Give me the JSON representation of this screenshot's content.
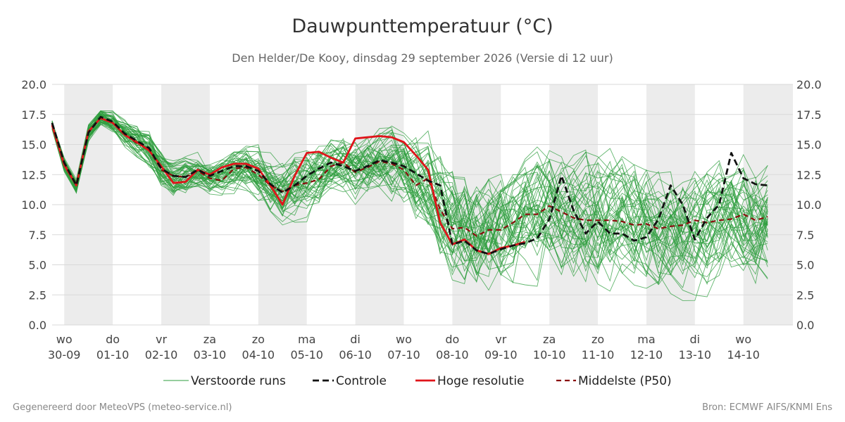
{
  "chart_data": {
    "type": "line",
    "title": "Dauwpunttemperatuur (°C)",
    "subtitle": "Den Helder/De Kooy, dinsdag 29 september 2026 (Versie di 12 uur)",
    "ylim": [
      0,
      20
    ],
    "y_ticks": [
      "0.0",
      "2.5",
      "5.0",
      "7.5",
      "10.0",
      "12.5",
      "15.0",
      "17.5",
      "20.0"
    ],
    "y_tick_values": [
      0,
      2.5,
      5,
      7.5,
      10,
      12.5,
      15,
      17.5,
      20
    ],
    "x_unit": "days after 29-09 00:00",
    "xlim": [
      0.75,
      16.02
    ],
    "x_ticks": [
      {
        "day": "wo",
        "date": "30-09",
        "x": 1
      },
      {
        "day": "do",
        "date": "01-10",
        "x": 2
      },
      {
        "day": "vr",
        "date": "02-10",
        "x": 3
      },
      {
        "day": "za",
        "date": "03-10",
        "x": 4
      },
      {
        "day": "zo",
        "date": "04-10",
        "x": 5
      },
      {
        "day": "ma",
        "date": "05-10",
        "x": 6
      },
      {
        "day": "di",
        "date": "06-10",
        "x": 7
      },
      {
        "day": "wo",
        "date": "07-10",
        "x": 8
      },
      {
        "day": "do",
        "date": "08-10",
        "x": 9
      },
      {
        "day": "vr",
        "date": "09-10",
        "x": 10
      },
      {
        "day": "za",
        "date": "10-10",
        "x": 11
      },
      {
        "day": "zo",
        "date": "11-10",
        "x": 12
      },
      {
        "day": "ma",
        "date": "12-10",
        "x": 13
      },
      {
        "day": "di",
        "date": "13-10",
        "x": 14
      },
      {
        "day": "wo",
        "date": "14-10",
        "x": 15
      }
    ],
    "shaded_days": [
      [
        1,
        2
      ],
      [
        3,
        4
      ],
      [
        5,
        6
      ],
      [
        7,
        8
      ],
      [
        9,
        10
      ],
      [
        11,
        12
      ],
      [
        13,
        14
      ],
      [
        15,
        16.02
      ]
    ],
    "grid": true,
    "colors": {
      "ensemble": "#2e9e3e",
      "control": "#111111",
      "hires": "#e0141a",
      "median": "#8b0e0e",
      "shade": "#ececec",
      "grid": "#d9d9d9"
    },
    "series": [
      {
        "name": "Controle",
        "style": "dashed",
        "points": [
          [
            0.75,
            16.8
          ],
          [
            1.0,
            13.5
          ],
          [
            1.25,
            11.6
          ],
          [
            1.5,
            16.0
          ],
          [
            1.75,
            17.3
          ],
          [
            2.0,
            16.9
          ],
          [
            2.25,
            15.9
          ],
          [
            2.5,
            15.3
          ],
          [
            2.75,
            14.7
          ],
          [
            3.0,
            13.0
          ],
          [
            3.25,
            12.4
          ],
          [
            3.5,
            12.3
          ],
          [
            3.75,
            12.9
          ],
          [
            4.0,
            12.4
          ],
          [
            4.25,
            12.8
          ],
          [
            4.5,
            13.2
          ],
          [
            4.75,
            13.2
          ],
          [
            5.0,
            12.8
          ],
          [
            5.25,
            11.7
          ],
          [
            5.5,
            11.0
          ],
          [
            5.75,
            11.6
          ],
          [
            6.0,
            12.4
          ],
          [
            6.25,
            13.0
          ],
          [
            6.5,
            13.5
          ],
          [
            6.75,
            13.2
          ],
          [
            7.0,
            12.8
          ],
          [
            7.25,
            13.2
          ],
          [
            7.5,
            13.7
          ],
          [
            7.75,
            13.5
          ],
          [
            8.0,
            13.2
          ],
          [
            8.25,
            12.6
          ],
          [
            8.5,
            12.0
          ],
          [
            8.75,
            11.6
          ],
          [
            9.0,
            6.7
          ],
          [
            9.25,
            7.0
          ],
          [
            9.5,
            6.2
          ],
          [
            9.75,
            5.9
          ],
          [
            10.0,
            6.3
          ],
          [
            10.25,
            6.6
          ],
          [
            10.5,
            6.8
          ],
          [
            10.75,
            7.2
          ],
          [
            11.0,
            8.8
          ],
          [
            11.25,
            12.4
          ],
          [
            11.5,
            9.5
          ],
          [
            11.75,
            7.6
          ],
          [
            12.0,
            8.6
          ],
          [
            12.25,
            7.6
          ],
          [
            12.5,
            7.6
          ],
          [
            12.75,
            7.0
          ],
          [
            13.0,
            7.3
          ],
          [
            13.25,
            8.8
          ],
          [
            13.5,
            11.6
          ],
          [
            13.75,
            10.0
          ],
          [
            14.0,
            7.1
          ],
          [
            14.25,
            8.9
          ],
          [
            14.5,
            10.0
          ],
          [
            14.75,
            14.3
          ],
          [
            15.0,
            12.2
          ],
          [
            15.25,
            11.7
          ],
          [
            15.5,
            11.6
          ]
        ]
      },
      {
        "name": "Hoge resolutie",
        "style": "solid",
        "points": [
          [
            0.75,
            16.6
          ],
          [
            1.0,
            13.3
          ],
          [
            1.25,
            11.6
          ],
          [
            1.5,
            16.1
          ],
          [
            1.75,
            17.2
          ],
          [
            2.0,
            16.8
          ],
          [
            2.25,
            15.8
          ],
          [
            2.5,
            15.2
          ],
          [
            2.75,
            14.5
          ],
          [
            3.0,
            13.2
          ],
          [
            3.25,
            11.8
          ],
          [
            3.5,
            11.9
          ],
          [
            3.75,
            12.9
          ],
          [
            4.0,
            12.5
          ],
          [
            4.25,
            13.1
          ],
          [
            4.5,
            13.4
          ],
          [
            4.75,
            13.4
          ],
          [
            5.0,
            13.0
          ],
          [
            5.25,
            11.6
          ],
          [
            5.5,
            10.0
          ],
          [
            5.75,
            12.4
          ],
          [
            6.0,
            14.3
          ],
          [
            6.25,
            14.4
          ],
          [
            6.5,
            13.9
          ],
          [
            6.75,
            13.5
          ],
          [
            7.0,
            15.5
          ],
          [
            7.25,
            15.6
          ],
          [
            7.5,
            15.7
          ],
          [
            7.75,
            15.6
          ],
          [
            8.0,
            15.2
          ],
          [
            8.25,
            14.1
          ],
          [
            8.5,
            12.9
          ],
          [
            8.75,
            8.5
          ],
          [
            9.0,
            6.7
          ],
          [
            9.25,
            7.1
          ],
          [
            9.5,
            6.2
          ],
          [
            9.75,
            5.9
          ],
          [
            10.0,
            6.4
          ],
          [
            10.25,
            6.6
          ],
          [
            10.5,
            6.9
          ]
        ]
      },
      {
        "name": "Middelste (P50)",
        "style": "dashed",
        "points": [
          [
            0.75,
            16.7
          ],
          [
            1.0,
            13.4
          ],
          [
            1.25,
            11.7
          ],
          [
            1.5,
            16.0
          ],
          [
            1.75,
            17.2
          ],
          [
            2.0,
            16.8
          ],
          [
            2.25,
            15.8
          ],
          [
            2.5,
            15.1
          ],
          [
            2.75,
            14.6
          ],
          [
            3.0,
            12.9
          ],
          [
            3.25,
            12.4
          ],
          [
            3.5,
            12.3
          ],
          [
            3.75,
            12.8
          ],
          [
            4.0,
            12.2
          ],
          [
            4.25,
            12.0
          ],
          [
            4.5,
            13.0
          ],
          [
            4.75,
            13.1
          ],
          [
            5.0,
            12.5
          ],
          [
            5.25,
            11.6
          ],
          [
            5.5,
            11.1
          ],
          [
            5.75,
            11.6
          ],
          [
            6.0,
            11.8
          ],
          [
            6.25,
            12.1
          ],
          [
            6.5,
            13.2
          ],
          [
            6.75,
            13.5
          ],
          [
            7.0,
            12.7
          ],
          [
            7.25,
            13.1
          ],
          [
            7.5,
            13.6
          ],
          [
            7.75,
            13.4
          ],
          [
            8.0,
            12.9
          ],
          [
            8.25,
            11.6
          ],
          [
            8.5,
            12.2
          ],
          [
            8.75,
            9.6
          ],
          [
            9.0,
            8.0
          ],
          [
            9.25,
            8.1
          ],
          [
            9.5,
            7.4
          ],
          [
            9.75,
            7.9
          ],
          [
            10.0,
            7.9
          ],
          [
            10.25,
            8.5
          ],
          [
            10.5,
            9.2
          ],
          [
            10.75,
            9.2
          ],
          [
            11.0,
            9.9
          ],
          [
            11.25,
            9.4
          ],
          [
            11.5,
            8.9
          ],
          [
            11.75,
            8.7
          ],
          [
            12.0,
            8.7
          ],
          [
            12.25,
            8.7
          ],
          [
            12.5,
            8.6
          ],
          [
            12.75,
            8.3
          ],
          [
            13.0,
            8.4
          ],
          [
            13.25,
            8.0
          ],
          [
            13.5,
            8.2
          ],
          [
            13.75,
            8.3
          ],
          [
            14.0,
            8.7
          ],
          [
            14.25,
            8.5
          ],
          [
            14.5,
            8.7
          ],
          [
            14.75,
            8.8
          ],
          [
            15.0,
            9.2
          ],
          [
            15.25,
            8.7
          ],
          [
            15.5,
            9.0
          ]
        ]
      }
    ],
    "ensemble_band": {
      "name": "Verstoorde runs",
      "member_count": 50,
      "x_start": 0.75,
      "x_step": 0.25,
      "median": [
        16.6,
        13.3,
        11.5,
        16.0,
        17.3,
        16.9,
        16.0,
        15.3,
        14.6,
        13.1,
        12.3,
        12.4,
        12.7,
        12.3,
        12.4,
        12.9,
        13.0,
        12.5,
        11.5,
        10.8,
        11.4,
        12.0,
        12.6,
        13.2,
        13.5,
        12.9,
        13.1,
        13.5,
        13.3,
        12.9,
        12.0,
        11.7,
        9.8,
        8.5,
        8.2,
        7.7,
        7.8,
        7.9,
        8.2,
        8.6,
        8.8,
        9.3,
        9.1,
        8.8,
        8.6,
        8.6,
        8.5,
        8.4,
        8.2,
        8.3,
        8.1,
        8.2,
        8.2,
        8.4,
        8.3,
        8.5,
        8.6,
        8.8,
        8.6,
        8.7
      ],
      "spread": [
        0.3,
        0.4,
        0.4,
        0.5,
        0.5,
        0.6,
        0.8,
        0.9,
        1.0,
        1.0,
        1.0,
        1.0,
        0.9,
        0.9,
        1.0,
        1.1,
        1.2,
        1.4,
        1.6,
        1.8,
        1.9,
        1.9,
        1.8,
        1.7,
        1.7,
        1.7,
        1.7,
        1.8,
        1.9,
        2.1,
        2.4,
        2.8,
        3.1,
        3.3,
        3.4,
        3.4,
        3.4,
        3.4,
        3.4,
        3.4,
        3.4,
        3.4,
        3.4,
        3.4,
        3.4,
        3.4,
        3.4,
        3.4,
        3.4,
        3.4,
        3.4,
        3.4,
        3.4,
        3.4,
        3.4,
        3.4,
        3.4,
        3.4,
        3.4,
        3.4
      ]
    },
    "legend": {
      "position": "bottom-center",
      "entries": [
        "Verstoorde runs",
        "Controle",
        "Hoge resolutie",
        "Middelste (P50)"
      ]
    }
  },
  "footer": {
    "left": "Gegenereerd door MeteoVPS (meteo-service.nl)",
    "right": "Bron: ECMWF AIFS/KNMI Ens"
  }
}
